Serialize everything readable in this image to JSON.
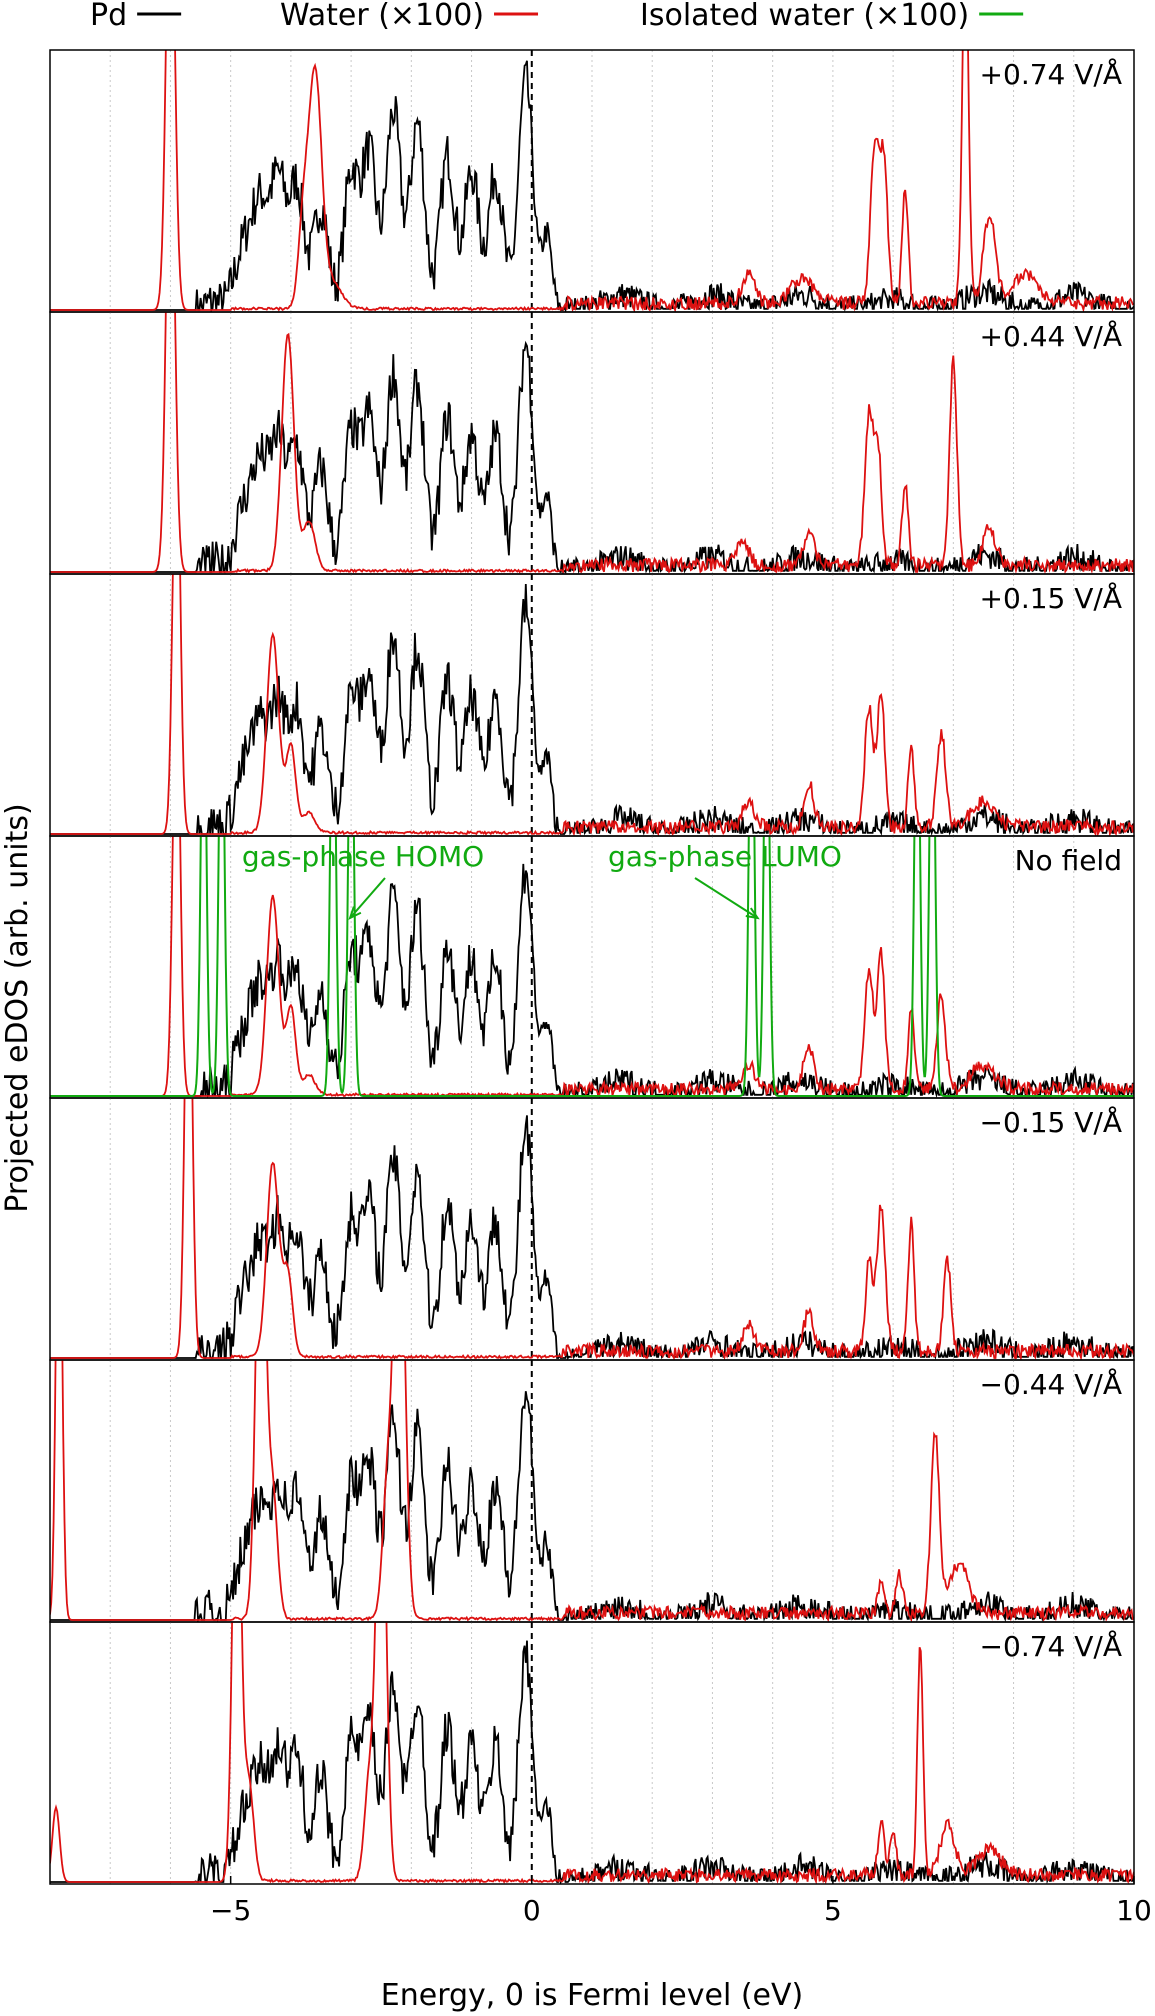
{
  "chart_data": {
    "type": "line",
    "xlabel": "Energy, 0 is Fermi level (eV)",
    "ylabel": "Projected eDOS (arb. units)",
    "xlim": [
      -8,
      10
    ],
    "x_ticks": [
      -5,
      0,
      5,
      10
    ],
    "x_tick_labels": [
      "-5",
      "0",
      "5",
      "10"
    ],
    "minor_gridlines_step": 1,
    "fermi_line_x": 0,
    "legend": {
      "position": "top",
      "entries": [
        {
          "label": "Pd",
          "color": "#000000"
        },
        {
          "label": "Water (×100)",
          "color": "#dd1111"
        },
        {
          "label": "Isolated water (×100)",
          "color": "#11aa11"
        }
      ]
    },
    "annotations": [
      {
        "text": "gas-phase HOMO",
        "panel": 3,
        "arrow_to_x": -3.1
      },
      {
        "text": "gas-phase LUMO",
        "panel": 3,
        "arrow_to_x": 3.8
      }
    ],
    "panels": [
      {
        "label": "+0.74 V/Å",
        "water_peaks": [
          [
            -6.0,
            1.9,
            0.07
          ],
          [
            -3.6,
            0.95,
            0.11
          ],
          [
            -3.8,
            0.3,
            0.08
          ],
          [
            -3.3,
            0.1,
            0.15
          ],
          [
            5.7,
            0.65,
            0.07
          ],
          [
            5.85,
            0.55,
            0.06
          ],
          [
            6.2,
            0.45,
            0.05
          ],
          [
            7.2,
            1.5,
            0.05
          ],
          [
            7.6,
            0.35,
            0.1
          ],
          [
            4.5,
            0.1,
            0.2
          ],
          [
            3.6,
            0.12,
            0.1
          ],
          [
            8.2,
            0.12,
            0.2
          ]
        ]
      },
      {
        "label": "+0.44 V/Å",
        "water_peaks": [
          [
            -6.0,
            1.9,
            0.07
          ],
          [
            -4.05,
            0.95,
            0.1
          ],
          [
            -3.7,
            0.2,
            0.1
          ],
          [
            5.6,
            0.6,
            0.07
          ],
          [
            5.75,
            0.45,
            0.06
          ],
          [
            6.2,
            0.32,
            0.05
          ],
          [
            7.0,
            0.82,
            0.06
          ],
          [
            4.6,
            0.14,
            0.08
          ],
          [
            7.6,
            0.15,
            0.1
          ],
          [
            3.5,
            0.1,
            0.1
          ]
        ]
      },
      {
        "label": "+0.15 V/Å",
        "water_peaks": [
          [
            -5.9,
            1.75,
            0.06
          ],
          [
            -4.3,
            0.8,
            0.1
          ],
          [
            -4.0,
            0.35,
            0.08
          ],
          [
            -3.7,
            0.08,
            0.1
          ],
          [
            5.6,
            0.48,
            0.07
          ],
          [
            5.8,
            0.55,
            0.06
          ],
          [
            6.3,
            0.32,
            0.05
          ],
          [
            6.8,
            0.38,
            0.07
          ],
          [
            4.6,
            0.18,
            0.08
          ],
          [
            3.6,
            0.1,
            0.1
          ],
          [
            7.5,
            0.1,
            0.2
          ]
        ]
      },
      {
        "label": "No field",
        "water_peaks": [
          [
            -5.9,
            1.75,
            0.06
          ],
          [
            -4.3,
            0.8,
            0.1
          ],
          [
            -4.0,
            0.35,
            0.08
          ],
          [
            -3.7,
            0.08,
            0.1
          ],
          [
            5.6,
            0.48,
            0.07
          ],
          [
            5.8,
            0.55,
            0.06
          ],
          [
            6.3,
            0.32,
            0.05
          ],
          [
            6.8,
            0.38,
            0.07
          ],
          [
            4.6,
            0.18,
            0.08
          ],
          [
            3.6,
            0.1,
            0.1
          ],
          [
            7.5,
            0.1,
            0.2
          ]
        ],
        "isolated_peaks": [
          [
            -5.45,
            1.8,
            0.045
          ],
          [
            -5.15,
            1.8,
            0.045
          ],
          [
            -3.3,
            1.8,
            0.045
          ],
          [
            -3.0,
            1.8,
            0.045
          ],
          [
            3.65,
            1.8,
            0.045
          ],
          [
            3.9,
            1.8,
            0.045
          ],
          [
            6.4,
            1.8,
            0.045
          ],
          [
            6.65,
            1.8,
            0.045
          ]
        ]
      },
      {
        "label": "−0.15 V/Å",
        "water_peaks": [
          [
            -5.7,
            1.9,
            0.06
          ],
          [
            -4.3,
            0.78,
            0.1
          ],
          [
            -4.05,
            0.33,
            0.08
          ],
          [
            5.8,
            0.58,
            0.07
          ],
          [
            5.6,
            0.35,
            0.06
          ],
          [
            6.3,
            0.52,
            0.05
          ],
          [
            6.9,
            0.36,
            0.06
          ],
          [
            4.6,
            0.16,
            0.08
          ],
          [
            3.6,
            0.1,
            0.1
          ]
        ]
      },
      {
        "label": "−0.44 V/Å",
        "water_peaks": [
          [
            -7.85,
            2.0,
            0.05
          ],
          [
            -4.5,
            1.9,
            0.08
          ],
          [
            -4.3,
            0.5,
            0.08
          ],
          [
            -2.2,
            1.9,
            0.09
          ],
          [
            -2.4,
            0.5,
            0.08
          ],
          [
            6.7,
            0.72,
            0.07
          ],
          [
            5.8,
            0.12,
            0.05
          ],
          [
            6.1,
            0.15,
            0.06
          ],
          [
            7.1,
            0.2,
            0.15
          ]
        ]
      },
      {
        "label": "−0.74 V/Å",
        "water_peaks": [
          [
            -7.9,
            0.3,
            0.06
          ],
          [
            -4.9,
            1.9,
            0.07
          ],
          [
            -4.7,
            0.4,
            0.08
          ],
          [
            -2.5,
            1.9,
            0.08
          ],
          [
            -2.7,
            0.4,
            0.08
          ],
          [
            6.45,
            0.95,
            0.045
          ],
          [
            5.8,
            0.22,
            0.05
          ],
          [
            6.0,
            0.18,
            0.05
          ],
          [
            6.9,
            0.2,
            0.12
          ],
          [
            7.6,
            0.1,
            0.2
          ]
        ]
      }
    ],
    "pd_peaks": [
      [
        -5.3,
        0.03,
        0.1
      ],
      [
        -4.8,
        0.22,
        0.15
      ],
      [
        -4.5,
        0.42,
        0.15
      ],
      [
        -4.2,
        0.48,
        0.12
      ],
      [
        -3.9,
        0.5,
        0.12
      ],
      [
        -3.5,
        0.42,
        0.12
      ],
      [
        -3.0,
        0.55,
        0.12
      ],
      [
        -2.7,
        0.62,
        0.12
      ],
      [
        -2.3,
        0.8,
        0.12
      ],
      [
        -1.9,
        0.75,
        0.12
      ],
      [
        -1.4,
        0.62,
        0.12
      ],
      [
        -1.0,
        0.55,
        0.12
      ],
      [
        -0.6,
        0.55,
        0.12
      ],
      [
        -0.1,
        0.92,
        0.12
      ],
      [
        0.25,
        0.3,
        0.08
      ],
      [
        1.5,
        0.06,
        0.3
      ],
      [
        3.0,
        0.06,
        0.3
      ],
      [
        4.5,
        0.06,
        0.3
      ],
      [
        6.0,
        0.04,
        0.3
      ],
      [
        7.5,
        0.07,
        0.3
      ],
      [
        9.0,
        0.06,
        0.3
      ]
    ]
  }
}
